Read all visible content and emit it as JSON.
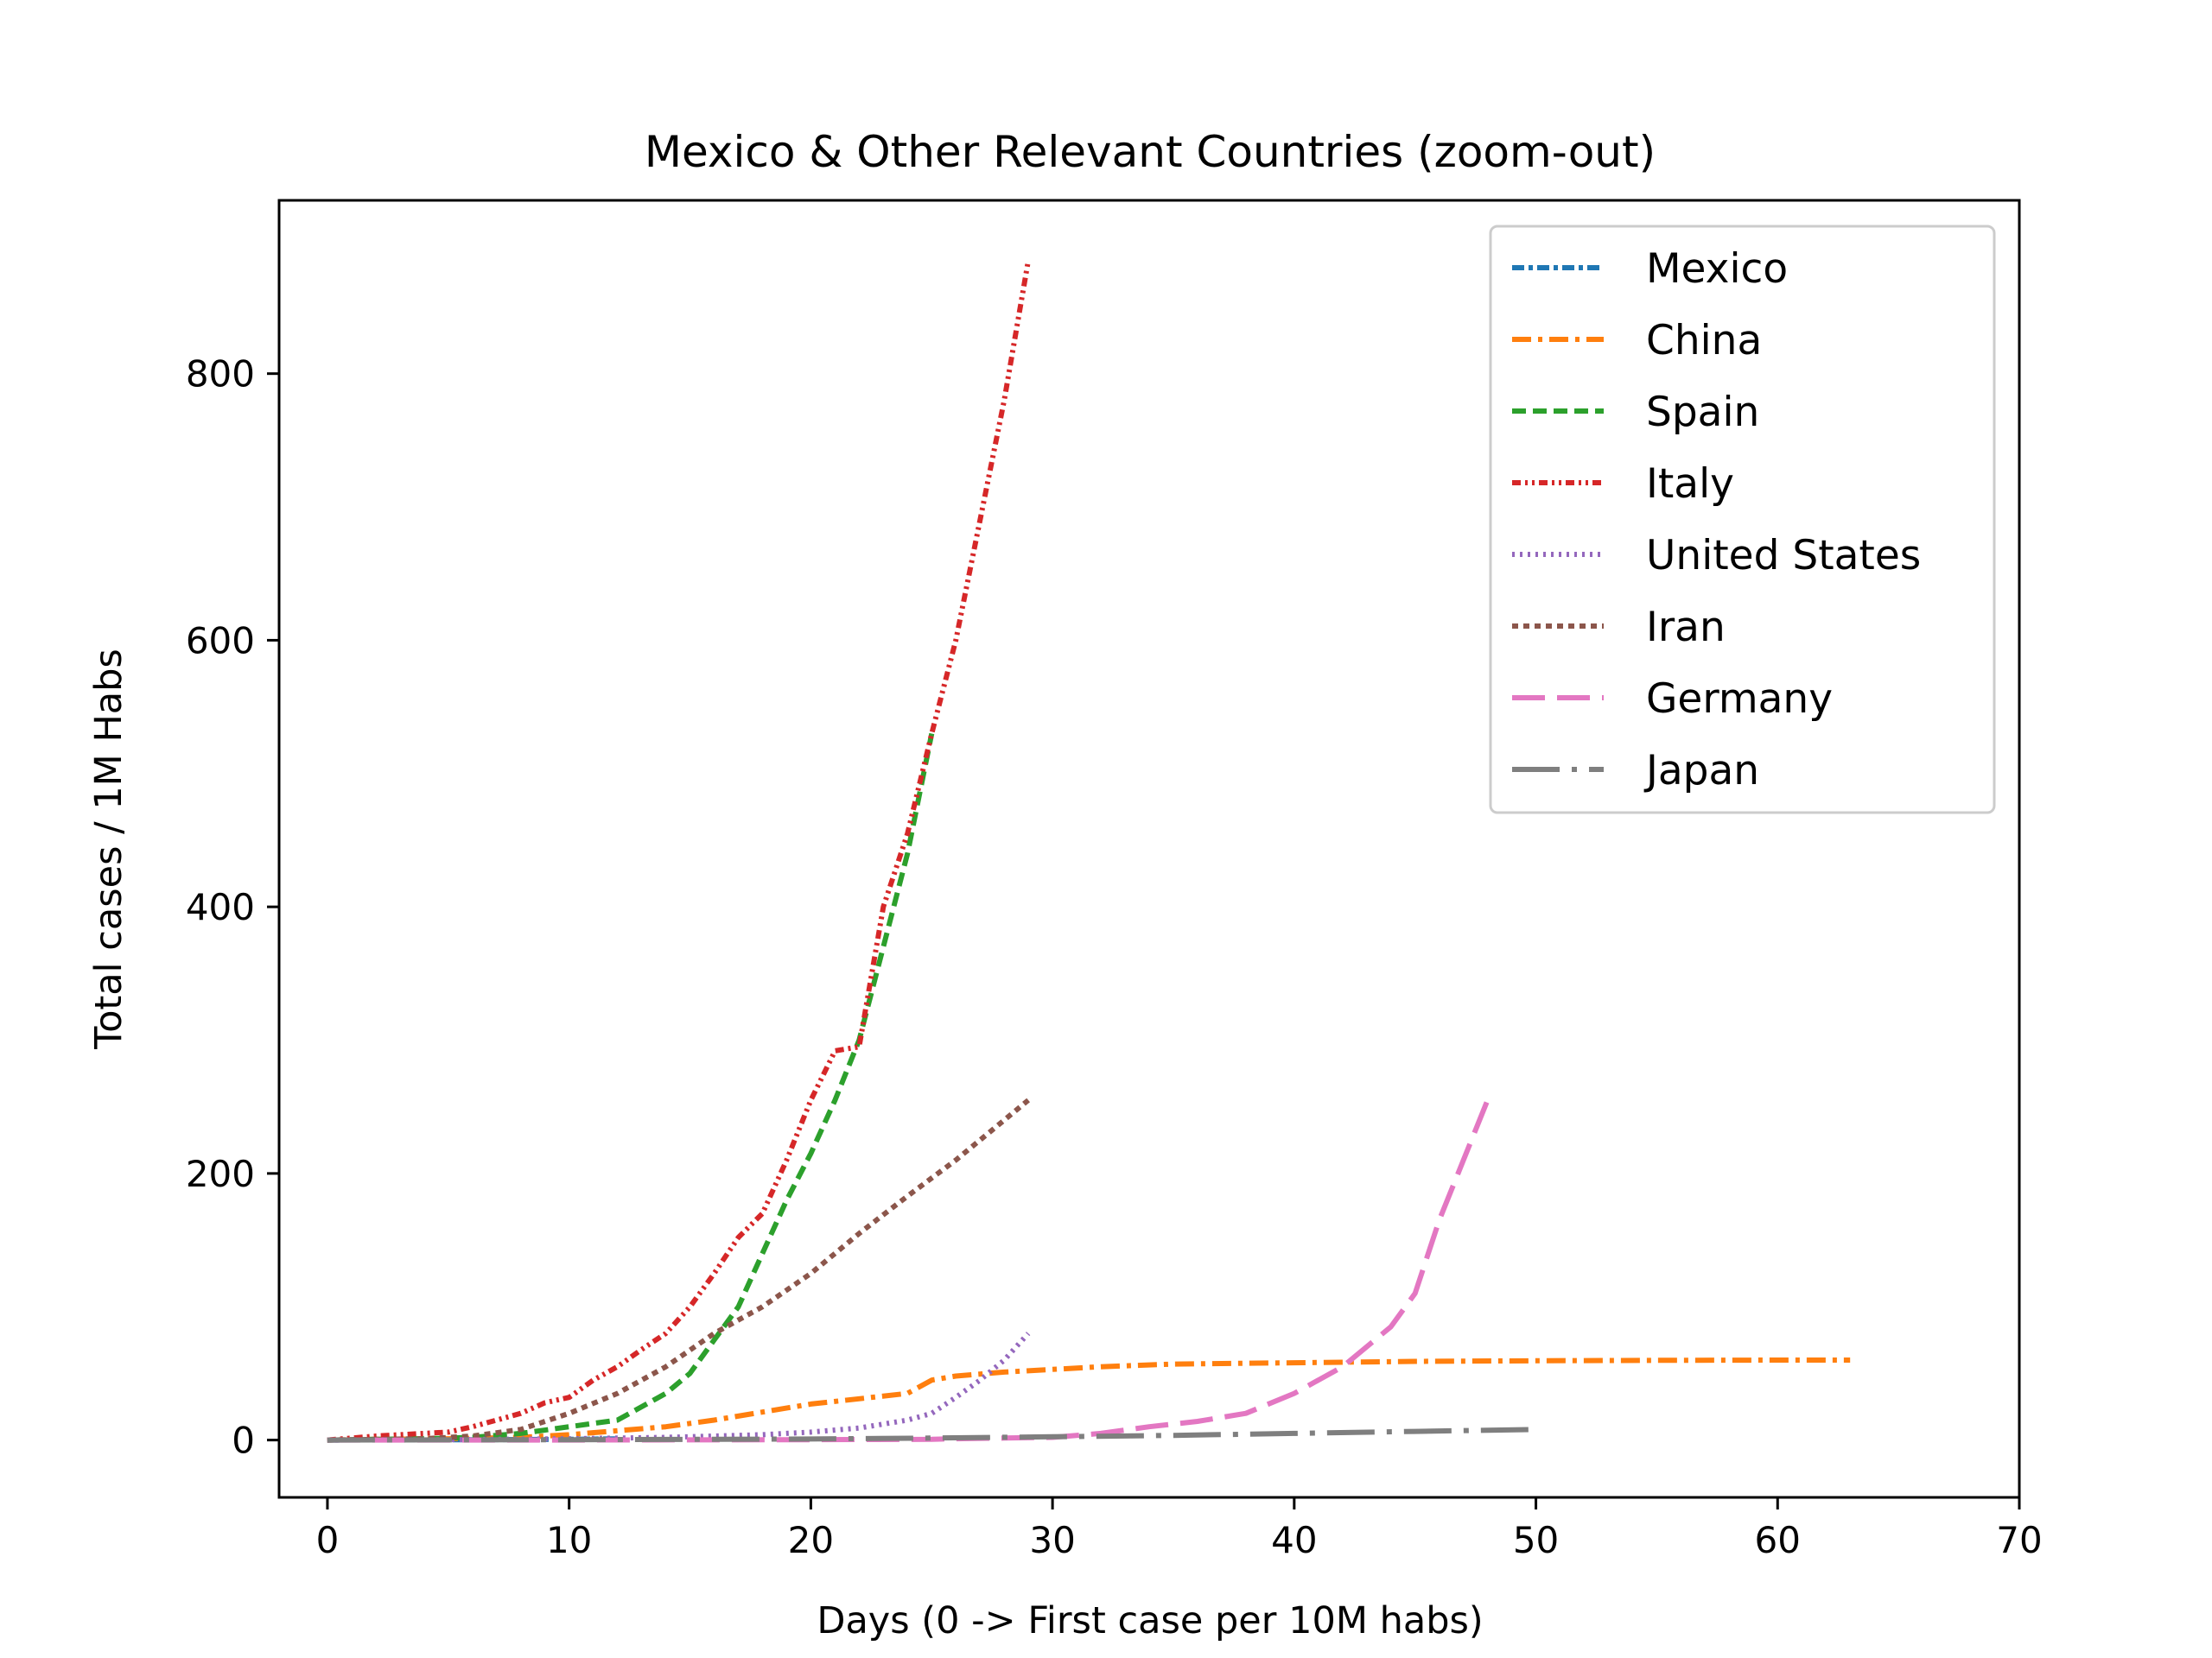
{
  "chart_data": {
    "type": "line",
    "title": "Mexico & Other Relevant Countries (zoom-out)",
    "xlabel": "Days (0 -> First case per 10M habs)",
    "ylabel": "Total cases / 1M Habs",
    "xlim": [
      -2,
      70
    ],
    "ylim": [
      -43,
      930
    ],
    "xticks": [
      0,
      10,
      20,
      30,
      40,
      50,
      60,
      70
    ],
    "yticks": [
      0,
      200,
      400,
      600,
      800
    ],
    "legend_position": "upper right",
    "grid": false,
    "series": [
      {
        "name": "Mexico",
        "color": "#1f77b4",
        "dash": "14 5 5 5",
        "x": [
          0,
          5,
          10,
          12
        ],
        "y": [
          0,
          0.2,
          0.5,
          0.9
        ]
      },
      {
        "name": "China",
        "color": "#ff7f0e",
        "dash": "22 8 5 8",
        "x": [
          0,
          2,
          5,
          8,
          10,
          12,
          14,
          16,
          18,
          20,
          22,
          24,
          25,
          26,
          28,
          30,
          32,
          35,
          40,
          45,
          50,
          55,
          60,
          63
        ],
        "y": [
          0,
          0.5,
          1,
          2,
          4,
          7,
          10,
          15,
          21,
          27,
          31,
          35,
          45,
          48,
          51,
          53,
          55,
          57,
          58,
          59,
          59.5,
          59.8,
          60,
          60
        ]
      },
      {
        "name": "Spain",
        "color": "#2ca02c",
        "dash": "16 8",
        "x": [
          0,
          2,
          4,
          6,
          8,
          10,
          12,
          14,
          15,
          16,
          17,
          18,
          19,
          20,
          21,
          22,
          23,
          24,
          25
        ],
        "y": [
          0,
          0.5,
          1,
          2,
          5,
          10,
          15,
          35,
          50,
          75,
          100,
          140,
          180,
          215,
          255,
          300,
          370,
          440,
          530
        ]
      },
      {
        "name": "Italy",
        "color": "#d62728",
        "dash": "10 5 3 5 3 5",
        "x": [
          0,
          2,
          4,
          5,
          6,
          7,
          8,
          9,
          10,
          11,
          12,
          13,
          14,
          15,
          16,
          17,
          18,
          19,
          20,
          21,
          22,
          23,
          24,
          25,
          26,
          27,
          28,
          29
        ],
        "y": [
          0,
          3,
          5,
          6,
          10,
          15,
          20,
          28,
          32,
          45,
          55,
          68,
          80,
          100,
          125,
          152,
          170,
          210,
          255,
          292,
          295,
          400,
          455,
          530,
          600,
          690,
          780,
          885
        ]
      },
      {
        "name": "United States",
        "color": "#9467bd",
        "dash": "3 6",
        "x": [
          0,
          5,
          10,
          14,
          16,
          18,
          20,
          22,
          24,
          25,
          26,
          27,
          28,
          29
        ],
        "y": [
          0,
          0.3,
          1,
          2,
          3,
          4,
          6,
          9,
          15,
          20,
          32,
          45,
          60,
          80
        ]
      },
      {
        "name": "Iran",
        "color": "#8c564b",
        "dash": "7 6",
        "x": [
          0,
          4,
          6,
          8,
          10,
          12,
          14,
          16,
          18,
          20,
          22,
          24,
          26,
          28,
          29
        ],
        "y": [
          0,
          1,
          3,
          8,
          20,
          35,
          55,
          80,
          100,
          125,
          155,
          183,
          210,
          240,
          255
        ]
      },
      {
        "name": "Germany",
        "color": "#e377c2",
        "dash": "38 14",
        "x": [
          0,
          10,
          20,
          25,
          26,
          28,
          30,
          32,
          34,
          36,
          38,
          40,
          42,
          44,
          45,
          46,
          48
        ],
        "y": [
          0,
          0,
          0.3,
          0.5,
          1,
          1.5,
          2,
          5,
          10,
          14,
          20,
          35,
          55,
          85,
          110,
          165,
          255
        ]
      },
      {
        "name": "Japan",
        "color": "#7f7f7f",
        "dash": "55 14 6 14",
        "x": [
          0,
          10,
          20,
          25,
          30,
          35,
          40,
          45,
          50
        ],
        "y": [
          0,
          0.3,
          0.8,
          1.5,
          2.5,
          3.5,
          5,
          6.5,
          8
        ]
      }
    ]
  }
}
